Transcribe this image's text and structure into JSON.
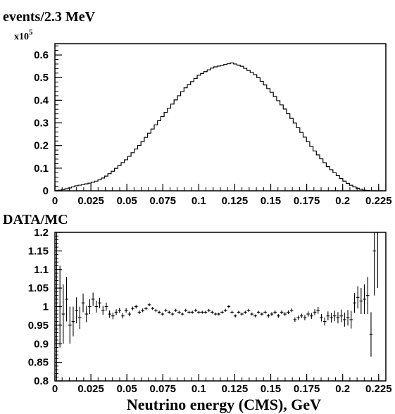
{
  "chart_data": [
    {
      "type": "histogram",
      "title": "events/2.3 MeV",
      "exponent_base": "x10",
      "exponent_power": "5",
      "xlim": [
        0,
        0.23
      ],
      "ylim": [
        0,
        0.65
      ],
      "xticks": [
        {
          "v": 0,
          "label": "0"
        },
        {
          "v": 0.025,
          "label": "0.025"
        },
        {
          "v": 0.05,
          "label": "0.05"
        },
        {
          "v": 0.075,
          "label": "0.075"
        },
        {
          "v": 0.1,
          "label": "0.1"
        },
        {
          "v": 0.125,
          "label": "0.125"
        },
        {
          "v": 0.15,
          "label": "0.15"
        },
        {
          "v": 0.175,
          "label": "0.175"
        },
        {
          "v": 0.2,
          "label": "0.2"
        },
        {
          "v": 0.225,
          "label": "0.225"
        }
      ],
      "yticks": [
        {
          "v": 0,
          "label": "0"
        },
        {
          "v": 0.1,
          "label": "0.1"
        },
        {
          "v": 0.2,
          "label": "0.2"
        },
        {
          "v": 0.3,
          "label": "0.3"
        },
        {
          "v": 0.4,
          "label": "0.4"
        },
        {
          "v": 0.5,
          "label": "0.5"
        },
        {
          "v": 0.6,
          "label": "0.6"
        }
      ],
      "shape_x": [
        0,
        0.005,
        0.01,
        0.015,
        0.02,
        0.025,
        0.03,
        0.035,
        0.04,
        0.05,
        0.06,
        0.07,
        0.08,
        0.09,
        0.1,
        0.11,
        0.12,
        0.123,
        0.13,
        0.14,
        0.15,
        0.16,
        0.17,
        0.18,
        0.19,
        0.2,
        0.205,
        0.21,
        0.215,
        0.22,
        0.222,
        0.225,
        0.23
      ],
      "shape_y": [
        0,
        0.004,
        0.012,
        0.022,
        0.028,
        0.035,
        0.045,
        0.062,
        0.085,
        0.14,
        0.21,
        0.29,
        0.37,
        0.45,
        0.51,
        0.545,
        0.56,
        0.565,
        0.55,
        0.51,
        0.44,
        0.36,
        0.27,
        0.18,
        0.105,
        0.048,
        0.027,
        0.012,
        0.003,
        0,
        0,
        0,
        0
      ],
      "bin_width": 0.0023
    },
    {
      "type": "scatter",
      "title": "DATA/MC",
      "xlabel": "Neutrino energy (CMS), GeV",
      "xlim": [
        0,
        0.23
      ],
      "ylim": [
        0.8,
        1.2
      ],
      "xticks": [
        {
          "v": 0,
          "label": "0"
        },
        {
          "v": 0.025,
          "label": "0.025"
        },
        {
          "v": 0.05,
          "label": "0.05"
        },
        {
          "v": 0.075,
          "label": "0.075"
        },
        {
          "v": 0.1,
          "label": "0.1"
        },
        {
          "v": 0.125,
          "label": "0.125"
        },
        {
          "v": 0.15,
          "label": "0.15"
        },
        {
          "v": 0.175,
          "label": "0.175"
        },
        {
          "v": 0.2,
          "label": "0.2"
        },
        {
          "v": 0.225,
          "label": "0.225"
        }
      ],
      "yticks": [
        {
          "v": 0.8,
          "label": "0.8"
        },
        {
          "v": 0.85,
          "label": "0.85"
        },
        {
          "v": 0.9,
          "label": "0.9"
        },
        {
          "v": 0.95,
          "label": "0.95"
        },
        {
          "v": 1.0,
          "label": "1"
        },
        {
          "v": 1.05,
          "label": "1.05"
        },
        {
          "v": 1.1,
          "label": "1.1"
        },
        {
          "v": 1.15,
          "label": "1.15"
        },
        {
          "v": 1.2,
          "label": "1.2"
        }
      ],
      "points": [
        [
          0.0012,
          1.0,
          0.2
        ],
        [
          0.0035,
          1.0,
          0.11
        ],
        [
          0.0058,
          0.98,
          0.08
        ],
        [
          0.0081,
          1.02,
          0.06
        ],
        [
          0.0104,
          0.95,
          0.05
        ],
        [
          0.0127,
          0.96,
          0.04
        ],
        [
          0.015,
          0.99,
          0.035
        ],
        [
          0.0173,
          0.97,
          0.03
        ],
        [
          0.0196,
          1.01,
          0.025
        ],
        [
          0.0219,
          0.98,
          0.022
        ],
        [
          0.0242,
          1.0,
          0.02
        ],
        [
          0.0265,
          1.02,
          0.018
        ],
        [
          0.0288,
          1.0,
          0.016
        ],
        [
          0.0311,
          1.01,
          0.014
        ],
        [
          0.0334,
          0.99,
          0.012
        ],
        [
          0.0357,
          1.0,
          0.011
        ],
        [
          0.038,
          0.98,
          0.01
        ],
        [
          0.0403,
          0.975,
          0.009
        ],
        [
          0.0426,
          0.985,
          0.008
        ],
        [
          0.0449,
          0.99,
          0.007
        ],
        [
          0.0472,
          0.975,
          0.007
        ],
        [
          0.0495,
          0.99,
          0.006
        ],
        [
          0.0518,
          0.98,
          0.006
        ],
        [
          0.0541,
          0.995,
          0.005
        ],
        [
          0.0564,
          1.0,
          0.005
        ],
        [
          0.0587,
          0.985,
          0.005
        ],
        [
          0.061,
          0.99,
          0.005
        ],
        [
          0.0633,
          0.995,
          0.004
        ],
        [
          0.0656,
          1.005,
          0.004
        ],
        [
          0.0679,
          0.995,
          0.004
        ],
        [
          0.0702,
          0.99,
          0.004
        ],
        [
          0.0725,
          0.985,
          0.004
        ],
        [
          0.0748,
          0.98,
          0.004
        ],
        [
          0.0771,
          0.99,
          0.004
        ],
        [
          0.0794,
          0.985,
          0.004
        ],
        [
          0.0817,
          0.98,
          0.004
        ],
        [
          0.084,
          0.99,
          0.004
        ],
        [
          0.0863,
          0.985,
          0.004
        ],
        [
          0.0886,
          0.98,
          0.004
        ],
        [
          0.0909,
          0.99,
          0.004
        ],
        [
          0.0932,
          0.985,
          0.004
        ],
        [
          0.0955,
          0.985,
          0.004
        ],
        [
          0.0978,
          0.99,
          0.004
        ],
        [
          0.1001,
          0.985,
          0.004
        ],
        [
          0.1024,
          0.985,
          0.004
        ],
        [
          0.1047,
          0.985,
          0.004
        ],
        [
          0.107,
          0.99,
          0.004
        ],
        [
          0.1093,
          0.985,
          0.004
        ],
        [
          0.1116,
          0.98,
          0.004
        ],
        [
          0.1139,
          0.98,
          0.004
        ],
        [
          0.1162,
          0.985,
          0.004
        ],
        [
          0.1185,
          0.99,
          0.004
        ],
        [
          0.1208,
          1.0,
          0.004
        ],
        [
          0.1231,
          0.985,
          0.004
        ],
        [
          0.1254,
          0.975,
          0.004
        ],
        [
          0.1277,
          0.985,
          0.004
        ],
        [
          0.13,
          0.98,
          0.004
        ],
        [
          0.1323,
          0.985,
          0.004
        ],
        [
          0.1346,
          0.99,
          0.004
        ],
        [
          0.1369,
          0.98,
          0.004
        ],
        [
          0.1392,
          0.975,
          0.004
        ],
        [
          0.1415,
          0.985,
          0.004
        ],
        [
          0.1438,
          0.98,
          0.004
        ],
        [
          0.1461,
          0.985,
          0.004
        ],
        [
          0.1484,
          0.975,
          0.005
        ],
        [
          0.1507,
          0.98,
          0.005
        ],
        [
          0.153,
          0.985,
          0.005
        ],
        [
          0.1553,
          0.975,
          0.005
        ],
        [
          0.1576,
          0.985,
          0.005
        ],
        [
          0.1599,
          0.98,
          0.005
        ],
        [
          0.1622,
          0.985,
          0.005
        ],
        [
          0.1645,
          0.99,
          0.005
        ],
        [
          0.1668,
          0.965,
          0.006
        ],
        [
          0.1691,
          0.97,
          0.006
        ],
        [
          0.1714,
          0.975,
          0.006
        ],
        [
          0.1737,
          0.97,
          0.007
        ],
        [
          0.176,
          0.98,
          0.007
        ],
        [
          0.1783,
          0.975,
          0.008
        ],
        [
          0.1806,
          0.985,
          0.008
        ],
        [
          0.1829,
          0.99,
          0.009
        ],
        [
          0.1852,
          0.97,
          0.01
        ],
        [
          0.1875,
          0.96,
          0.011
        ],
        [
          0.1898,
          0.975,
          0.012
        ],
        [
          0.1921,
          0.97,
          0.013
        ],
        [
          0.1944,
          0.975,
          0.014
        ],
        [
          0.1967,
          0.97,
          0.015
        ],
        [
          0.199,
          0.975,
          0.017
        ],
        [
          0.2013,
          0.965,
          0.019
        ],
        [
          0.2036,
          0.97,
          0.021
        ],
        [
          0.2059,
          0.965,
          0.024
        ],
        [
          0.2082,
          1.01,
          0.027
        ],
        [
          0.2105,
          1.025,
          0.03
        ],
        [
          0.2128,
          1.015,
          0.035
        ],
        [
          0.2151,
          1.02,
          0.04
        ],
        [
          0.2174,
          1.03,
          0.05
        ],
        [
          0.2197,
          0.925,
          0.06
        ],
        [
          0.222,
          1.15,
          0.12
        ],
        [
          0.2243,
          1.2,
          0.15
        ]
      ]
    }
  ]
}
